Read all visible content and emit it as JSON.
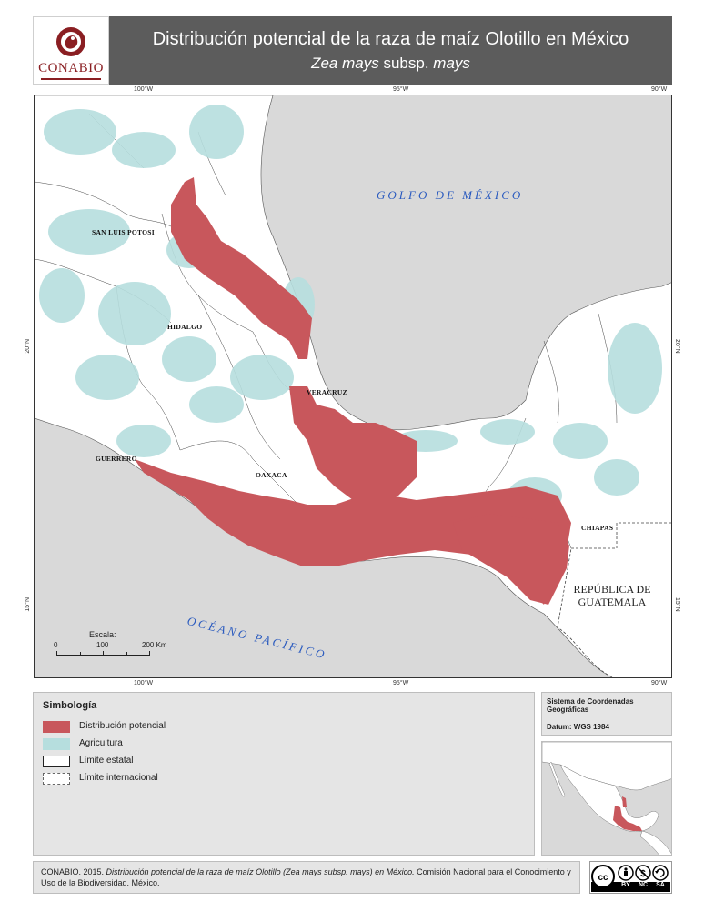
{
  "header": {
    "logo_text": "CONABIO",
    "title": "Distribución potencial de la raza de maíz Olotillo en México",
    "subtitle_italic_1": "Zea mays",
    "subtitle_plain": " subsp. ",
    "subtitle_italic_2": "mays"
  },
  "map": {
    "ticks_top": [
      "100°W",
      "95°W",
      "90°W"
    ],
    "ticks_bottom": [
      "100°W",
      "95°W",
      "90°W"
    ],
    "ticks_left": [
      "20°N",
      "15°N"
    ],
    "ticks_right": [
      "20°N",
      "15°N"
    ],
    "states": {
      "san_luis_potosi": "SAN LUIS POTOSI",
      "hidalgo": "HIDALGO",
      "veracruz": "VERACRUZ",
      "guerrero": "GUERRERO",
      "oaxaca": "OAXACA",
      "chiapas": "CHIAPAS"
    },
    "gulf_label": "GOLFO DE MÉXICO",
    "pacific_label": "OCÉANO PACÍFICO",
    "guatemala_label_1": "REPÚBLICA DE",
    "guatemala_label_2": "GUATEMALA",
    "scale": {
      "title": "Escala:",
      "labels": [
        "0",
        "100",
        "200 Km"
      ]
    }
  },
  "legend": {
    "title": "Simbología",
    "items": [
      {
        "label": "Distribución potencial",
        "color": "#c8575c"
      },
      {
        "label": "Agricultura",
        "color": "#b6dede"
      },
      {
        "label": "Límite estatal",
        "color": "#ffffff"
      },
      {
        "label": "Límite internacional",
        "color": "#ffffff"
      }
    ]
  },
  "coords": {
    "system": "Sistema de Coordenadas Geográficas",
    "datum": "Datum: WGS 1984"
  },
  "credit": {
    "prefix": "CONABIO. 2015. ",
    "italic": "Distribución potencial de la raza de maíz Olotillo (Zea mays subsp. mays) en México.",
    "suffix": " Comisión Nacional para el Conocimiento y Uso de la Biodiversidad. México."
  },
  "license": {
    "icons": [
      "cc-icon",
      "by-icon",
      "nc-icon",
      "sa-icon"
    ],
    "labels": [
      "BY",
      "NC",
      "SA"
    ]
  },
  "colors": {
    "sea": "#d9d9d9",
    "land": "#ffffff",
    "distribution": "#c8575c",
    "agriculture": "#b6dede",
    "header": "#5c5c5c"
  }
}
